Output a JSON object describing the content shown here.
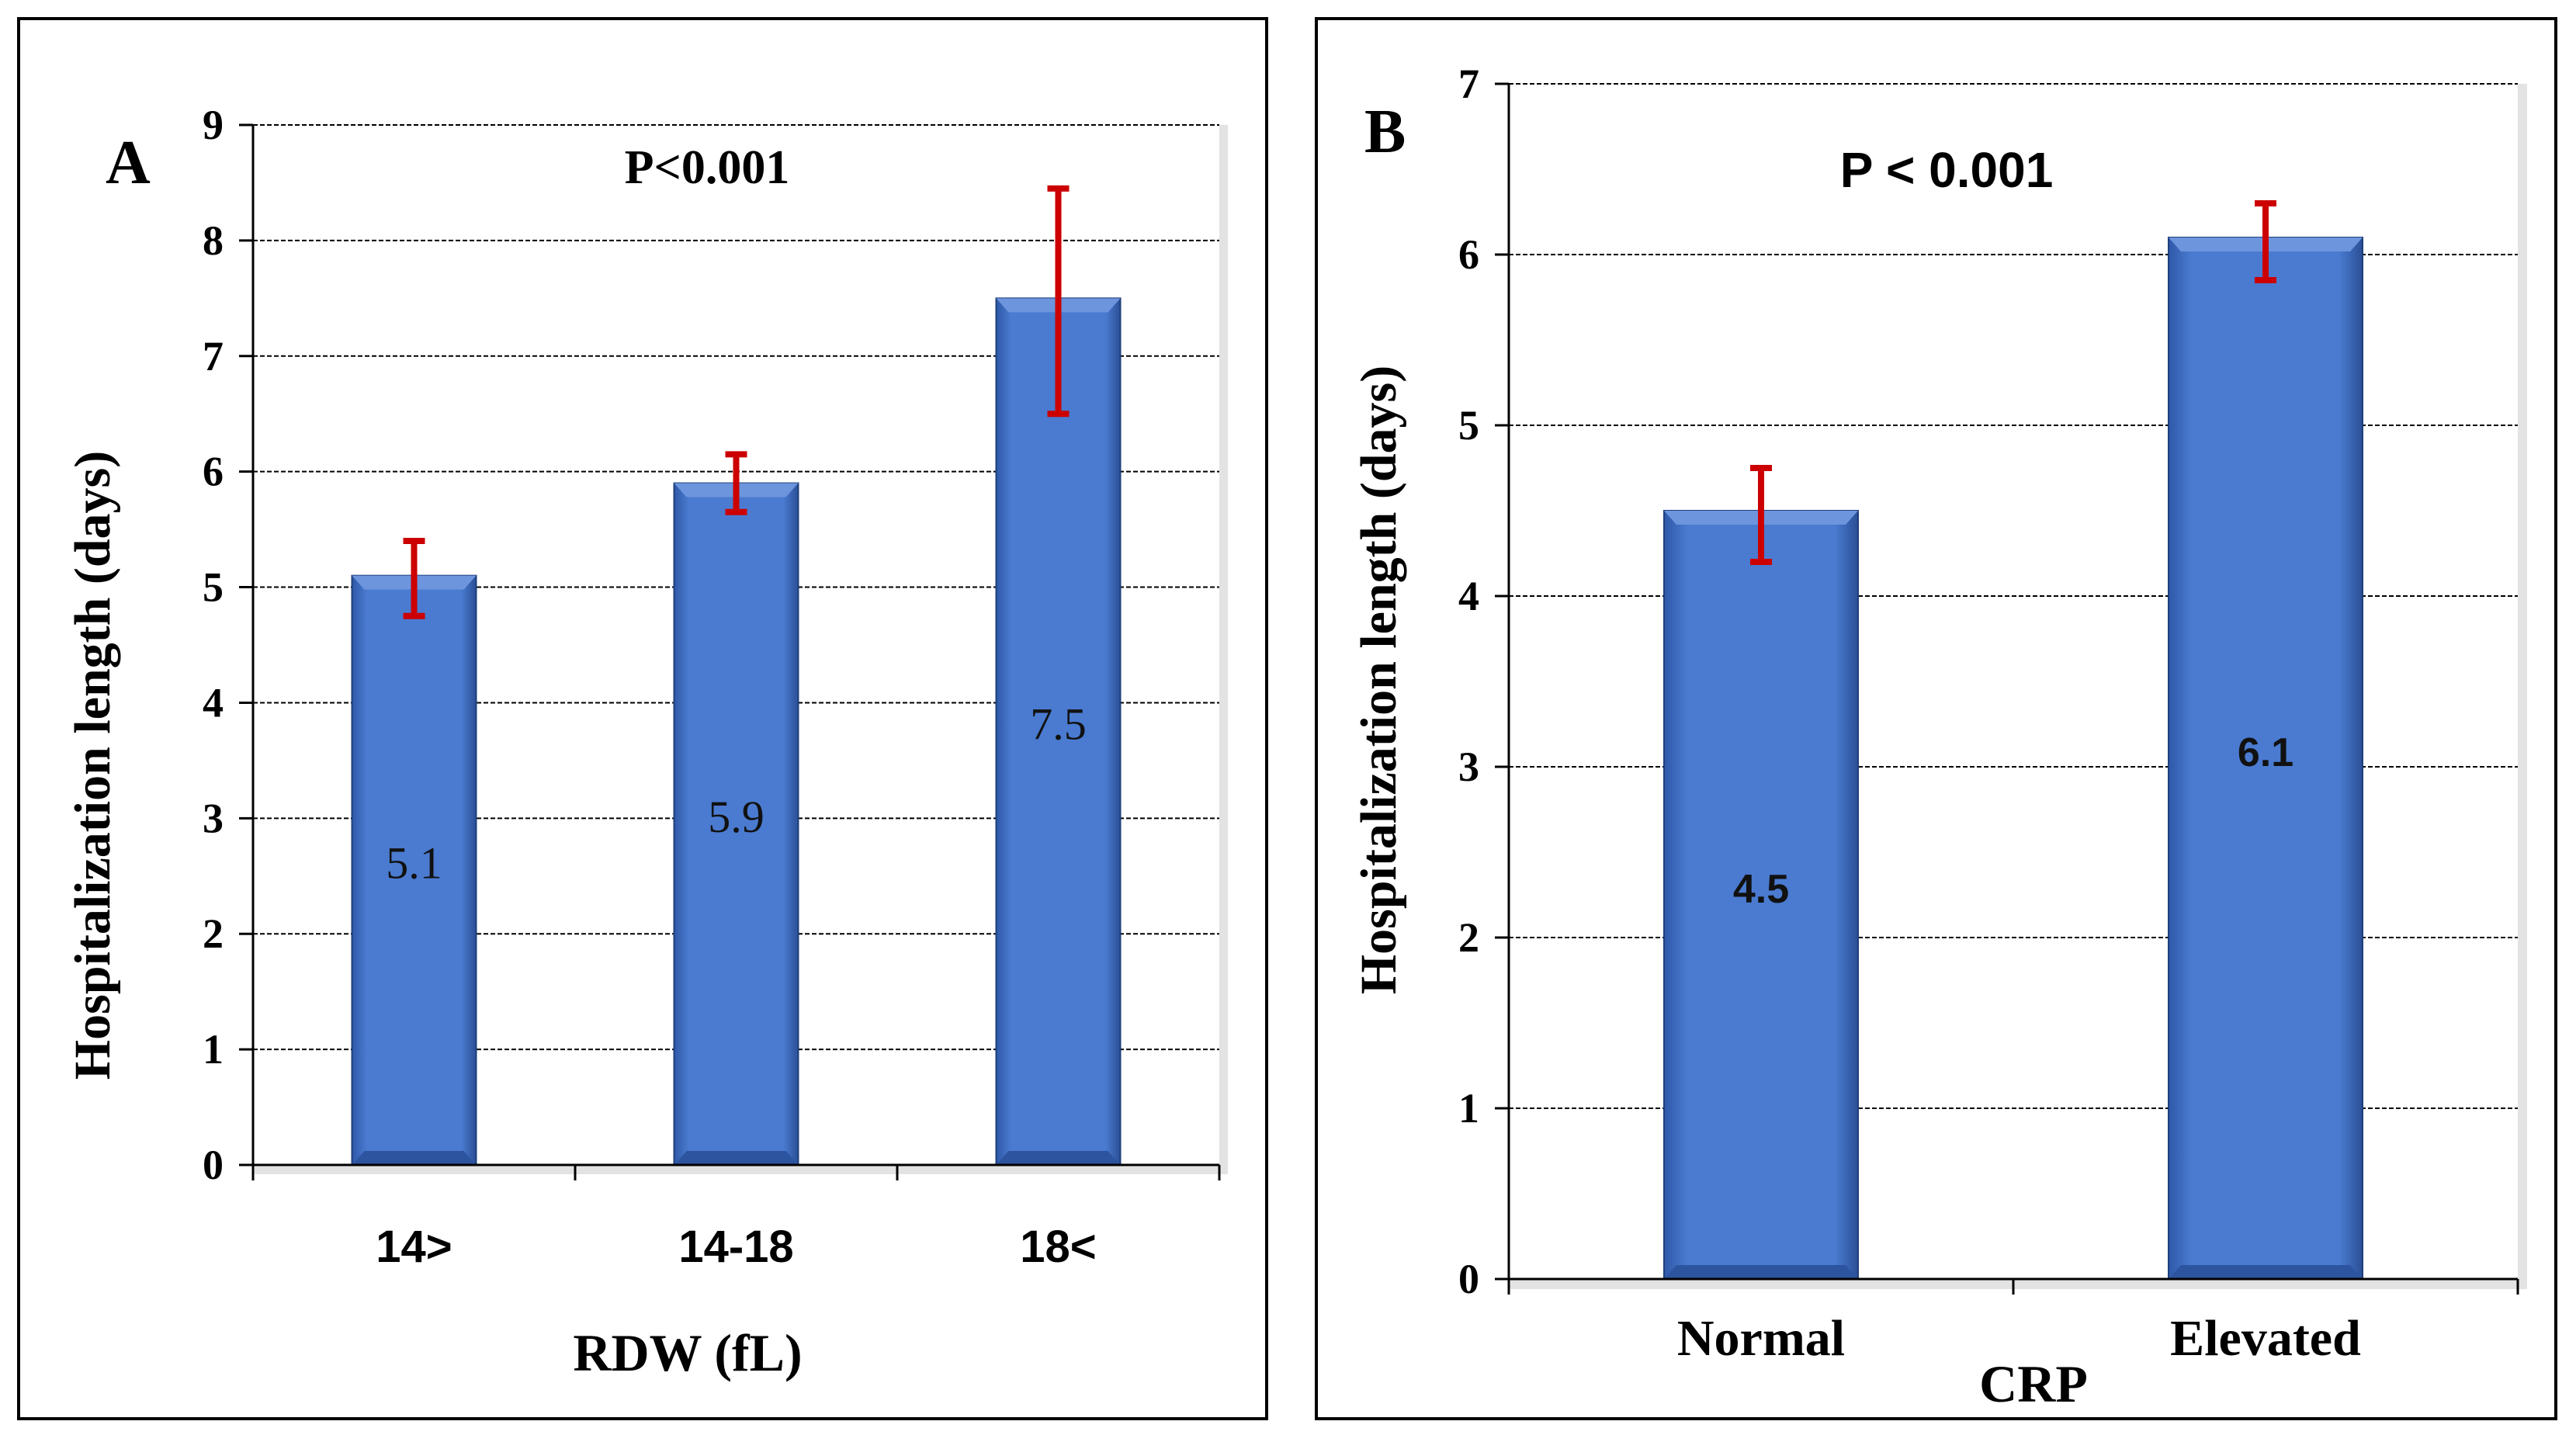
{
  "colors": {
    "bar": "#4472c4",
    "error_bar": "#cc0000",
    "grid": "#000000",
    "plot_bg": "#ffffff"
  },
  "chart_data": [
    {
      "type": "bar",
      "panel_label": "A",
      "title": "P<0.001",
      "xlabel": "RDW (fL)",
      "ylabel": "Hospitalization length (days)",
      "categories": [
        "14>",
        "14-18",
        "18<"
      ],
      "values": [
        5.1,
        5.9,
        7.5
      ],
      "value_labels": [
        "5.1",
        "5.9",
        "7.5"
      ],
      "error_low": [
        4.75,
        5.65,
        6.5
      ],
      "error_high": [
        5.4,
        6.15,
        8.45
      ],
      "ylim": [
        0,
        9
      ],
      "yticks": [
        "0",
        "1",
        "2",
        "3",
        "4",
        "5",
        "6",
        "7",
        "8",
        "9"
      ],
      "grid": true
    },
    {
      "type": "bar",
      "panel_label": "B",
      "title": "P < 0.001",
      "xlabel": "CRP",
      "ylabel": "Hospitalization length (days)",
      "categories": [
        "Normal",
        "Elevated"
      ],
      "values": [
        4.5,
        6.1
      ],
      "value_labels": [
        "4.5",
        "6.1"
      ],
      "error_low": [
        4.2,
        5.85
      ],
      "error_high": [
        4.75,
        6.3
      ],
      "ylim": [
        0,
        7
      ],
      "yticks": [
        "0",
        "1",
        "2",
        "3",
        "4",
        "5",
        "6",
        "7"
      ],
      "grid": true
    }
  ]
}
